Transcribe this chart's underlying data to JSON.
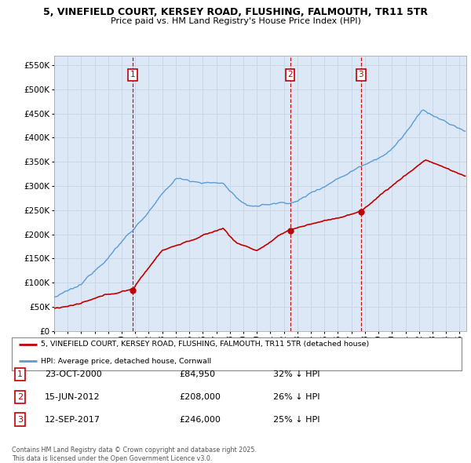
{
  "title_line1": "5, VINEFIELD COURT, KERSEY ROAD, FLUSHING, FALMOUTH, TR11 5TR",
  "title_line2": "Price paid vs. HM Land Registry's House Price Index (HPI)",
  "ytick_values": [
    0,
    50000,
    100000,
    150000,
    200000,
    250000,
    300000,
    350000,
    400000,
    450000,
    500000,
    550000
  ],
  "ylim": [
    0,
    570000
  ],
  "xlim_start": 1995.0,
  "xlim_end": 2025.5,
  "hpi_color": "#5b9bd5",
  "property_color": "#c00000",
  "vline_color": "#c00000",
  "grid_color": "#c8d8e8",
  "chart_bg": "#dce8f5",
  "background_color": "#ffffff",
  "sale_dates": [
    2000.81,
    2012.46,
    2017.71
  ],
  "sale_prices": [
    84950,
    208000,
    246000
  ],
  "sale_labels": [
    "1",
    "2",
    "3"
  ],
  "legend_property": "5, VINEFIELD COURT, KERSEY ROAD, FLUSHING, FALMOUTH, TR11 5TR (detached house)",
  "legend_hpi": "HPI: Average price, detached house, Cornwall",
  "table_rows": [
    {
      "num": "1",
      "date": "23-OCT-2000",
      "price": "£84,950",
      "pct": "32% ↓ HPI"
    },
    {
      "num": "2",
      "date": "15-JUN-2012",
      "price": "£208,000",
      "pct": "26% ↓ HPI"
    },
    {
      "num": "3",
      "date": "12-SEP-2017",
      "price": "£246,000",
      "pct": "25% ↓ HPI"
    }
  ],
  "footer": "Contains HM Land Registry data © Crown copyright and database right 2025.\nThis data is licensed under the Open Government Licence v3.0."
}
